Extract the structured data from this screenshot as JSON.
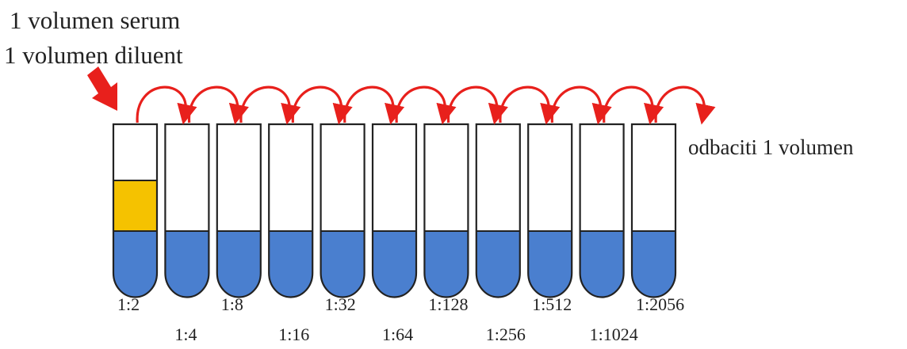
{
  "instruction": {
    "line1": "1 volumen serum",
    "line2": "1 volumen diluent"
  },
  "discard_label": "odbaciti 1 volumen",
  "tubes": [
    {
      "dilution": "1:2",
      "has_serum": true
    },
    {
      "dilution": "1:4",
      "has_serum": false
    },
    {
      "dilution": "1:8",
      "has_serum": false
    },
    {
      "dilution": "1:16",
      "has_serum": false
    },
    {
      "dilution": "1:32",
      "has_serum": false
    },
    {
      "dilution": "1:64",
      "has_serum": false
    },
    {
      "dilution": "1:128",
      "has_serum": false
    },
    {
      "dilution": "1:256",
      "has_serum": false
    },
    {
      "dilution": "1:512",
      "has_serum": false
    },
    {
      "dilution": "1:1024",
      "has_serum": false
    },
    {
      "dilution": "1:2056",
      "has_serum": false
    }
  ],
  "colors": {
    "diluent": "#4a7fcf",
    "serum": "#f5c200",
    "arrow": "#e8201c",
    "outline": "#222222"
  }
}
